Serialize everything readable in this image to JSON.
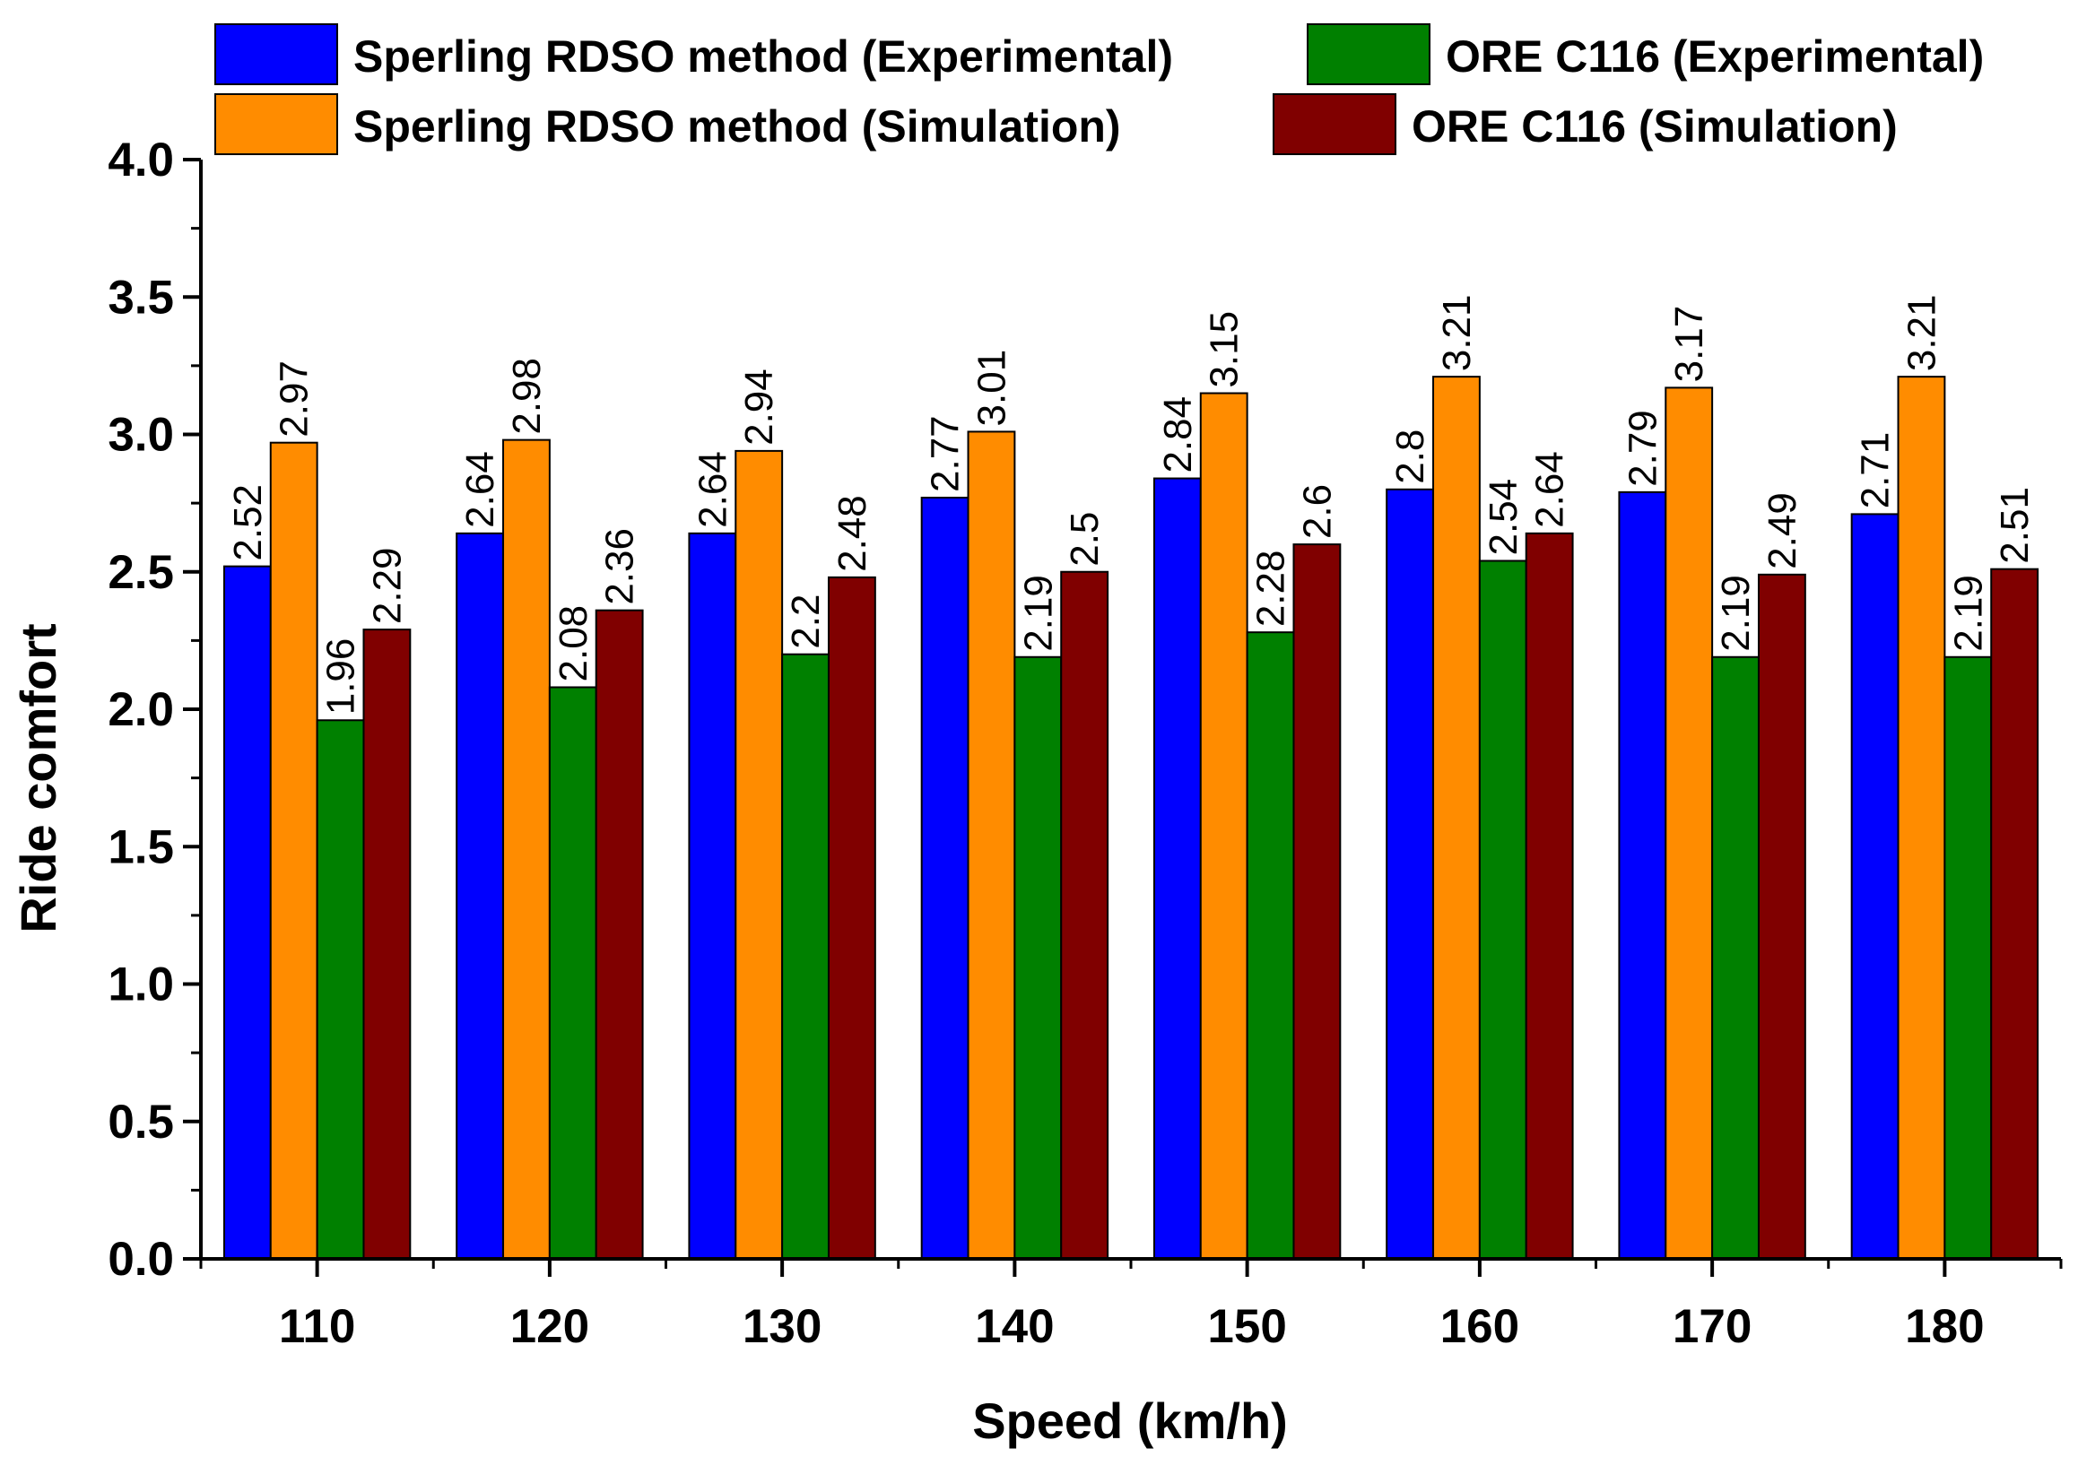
{
  "chart_data": {
    "type": "bar",
    "xlabel": "Speed (km/h)",
    "ylabel": "Ride comfort",
    "ylim": [
      0,
      4.0
    ],
    "ytick_step": 0.5,
    "ytick_labels": [
      "0.0",
      "0.5",
      "1.0",
      "1.5",
      "2.0",
      "2.5",
      "3.0",
      "3.5",
      "4.0"
    ],
    "categories": [
      "110",
      "120",
      "130",
      "140",
      "150",
      "160",
      "170",
      "180"
    ],
    "legend_position": "top",
    "grid": false,
    "series": [
      {
        "name": "Sperling RDSO method (Experimental)",
        "color": "#0000ff",
        "values": [
          2.52,
          2.64,
          2.64,
          2.77,
          2.84,
          2.8,
          2.79,
          2.71
        ],
        "labels": [
          "2.52",
          "2.64",
          "2.64",
          "2.77",
          "2.84",
          "2.8",
          "2.79",
          "2.71"
        ]
      },
      {
        "name": "Sperling RDSO method (Simulation)",
        "color": "#ff8c00",
        "values": [
          2.97,
          2.98,
          2.94,
          3.01,
          3.15,
          3.21,
          3.17,
          3.21
        ],
        "labels": [
          "2.97",
          "2.98",
          "2.94",
          "3.01",
          "3.15",
          "3.21",
          "3.17",
          "3.21"
        ]
      },
      {
        "name": "ORE C116 (Experimental)",
        "color": "#008000",
        "values": [
          1.96,
          2.08,
          2.2,
          2.19,
          2.28,
          2.54,
          2.19,
          2.19
        ],
        "labels": [
          "1.96",
          "2.08",
          "2.2",
          "2.19",
          "2.28",
          "2.54",
          "2.19",
          "2.19"
        ]
      },
      {
        "name": "ORE C116 (Simulation)",
        "color": "#800000",
        "values": [
          2.29,
          2.36,
          2.48,
          2.5,
          2.6,
          2.64,
          2.49,
          2.51
        ],
        "labels": [
          "2.29",
          "2.36",
          "2.48",
          "2.5",
          "2.6",
          "2.64",
          "2.49",
          "2.51"
        ]
      }
    ]
  }
}
